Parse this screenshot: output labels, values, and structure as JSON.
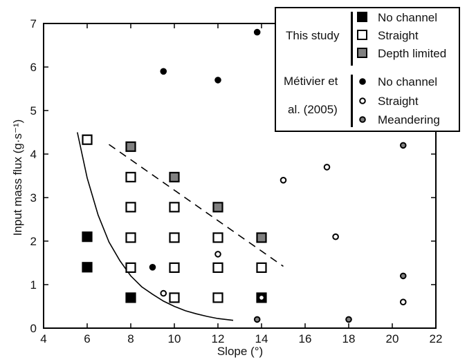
{
  "chart_data": {
    "type": "scatter",
    "xlabel": "Slope (°)",
    "ylabel": "Input mass flux (g·s⁻¹)",
    "xlim": [
      4,
      22
    ],
    "ylim": [
      0,
      7
    ],
    "xticks": [
      4,
      6,
      8,
      10,
      12,
      14,
      16,
      18,
      20,
      22
    ],
    "yticks": [
      0,
      1,
      2,
      3,
      4,
      5,
      6,
      7
    ],
    "grid": false,
    "legend_placement": "top-right",
    "legend": {
      "groups": [
        {
          "label": "This study",
          "entries": [
            {
              "name": "No channel",
              "marker": "square",
              "fill": "#000000"
            },
            {
              "name": "Straight",
              "marker": "square",
              "fill": "#ffffff"
            },
            {
              "name": "Depth limited",
              "marker": "square",
              "fill": "#808080"
            }
          ]
        },
        {
          "label": "Métivier et al. (2005)",
          "entries": [
            {
              "name": "No channel",
              "marker": "circle",
              "fill": "#000000"
            },
            {
              "name": "Straight",
              "marker": "circle",
              "fill": "#ffffff"
            },
            {
              "name": "Meandering",
              "marker": "circle",
              "fill": "#808080"
            }
          ]
        }
      ]
    },
    "series": [
      {
        "name": "No channel",
        "group": "This study",
        "marker": "square",
        "fill": "#000000",
        "points": [
          [
            6,
            2.1
          ],
          [
            6,
            1.4
          ],
          [
            8,
            0.7
          ],
          [
            14,
            0.7
          ]
        ]
      },
      {
        "name": "Straight",
        "group": "This study",
        "marker": "square",
        "fill": "#ffffff",
        "points": [
          [
            6,
            4.33
          ],
          [
            8,
            3.47
          ],
          [
            8,
            2.78
          ],
          [
            8,
            2.08
          ],
          [
            8,
            1.39
          ],
          [
            10,
            2.78
          ],
          [
            10,
            2.08
          ],
          [
            10,
            1.39
          ],
          [
            10,
            0.7
          ],
          [
            12,
            2.08
          ],
          [
            12,
            1.39
          ],
          [
            12,
            0.7
          ],
          [
            14,
            1.39
          ]
        ]
      },
      {
        "name": "Depth limited",
        "group": "This study",
        "marker": "square",
        "fill": "#808080",
        "points": [
          [
            8,
            4.17
          ],
          [
            10,
            3.47
          ],
          [
            12,
            2.78
          ],
          [
            14,
            2.08
          ]
        ]
      },
      {
        "name": "No channel",
        "group": "Métivier et al. (2005)",
        "marker": "circle",
        "fill": "#000000",
        "points": [
          [
            9.5,
            5.9
          ],
          [
            12,
            5.7
          ],
          [
            13.8,
            6.8
          ],
          [
            9,
            1.4
          ]
        ]
      },
      {
        "name": "Straight",
        "group": "Métivier et al. (2005)",
        "marker": "circle",
        "fill": "#ffffff",
        "points": [
          [
            15,
            3.4
          ],
          [
            17,
            3.7
          ],
          [
            17.4,
            2.1
          ],
          [
            12,
            1.7
          ],
          [
            9.5,
            0.8
          ],
          [
            14,
            0.7
          ],
          [
            20.5,
            0.6
          ]
        ]
      },
      {
        "name": "Meandering",
        "group": "Métivier et al. (2005)",
        "marker": "circle",
        "fill": "#808080",
        "points": [
          [
            20.5,
            4.2
          ],
          [
            20.5,
            1.2
          ],
          [
            18,
            0.2
          ],
          [
            13.8,
            0.2
          ]
        ]
      }
    ],
    "lines": [
      {
        "style": "solid",
        "color": "#000000",
        "points": [
          [
            5.55,
            4.5
          ],
          [
            6.0,
            3.45
          ],
          [
            6.5,
            2.6
          ],
          [
            7.0,
            1.98
          ],
          [
            7.5,
            1.55
          ],
          [
            8.0,
            1.2
          ],
          [
            8.5,
            0.95
          ],
          [
            9.0,
            0.78
          ],
          [
            9.5,
            0.62
          ],
          [
            10.0,
            0.5
          ],
          [
            10.5,
            0.4
          ],
          [
            11.0,
            0.33
          ],
          [
            11.5,
            0.27
          ],
          [
            12.0,
            0.22
          ],
          [
            12.7,
            0.18
          ]
        ]
      },
      {
        "style": "dashed",
        "color": "#000000",
        "points": [
          [
            7.0,
            4.22
          ],
          [
            15.0,
            1.42
          ]
        ]
      }
    ]
  }
}
